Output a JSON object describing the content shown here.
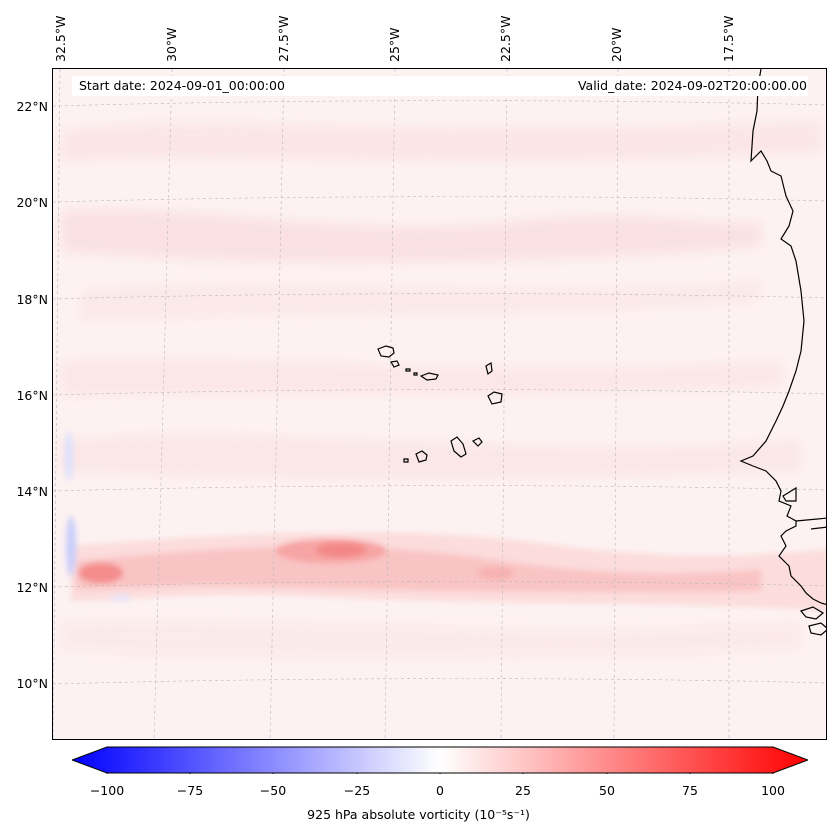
{
  "map": {
    "title_left": "Start date: 2024-09-01_00:00:00",
    "title_right": "Valid_date: 2024-09-02T20:00:00.00",
    "lon_labels": [
      "32.5°W",
      "30°W",
      "27.5°W",
      "25°W",
      "22.5°W",
      "20°W",
      "17.5°W"
    ],
    "lat_labels": [
      "22°N",
      "20°N",
      "18°N",
      "16°N",
      "14°N",
      "12°N",
      "10°N"
    ],
    "variable": "925 hPa absolute vorticity",
    "units": "(10⁻⁵s⁻¹)",
    "colorbar": {
      "ticks": [
        "−100",
        "−75",
        "−50",
        "−25",
        "0",
        "25",
        "50",
        "75",
        "100"
      ],
      "min": -100,
      "max": 100,
      "low_color": "#0000ff",
      "mid_color": "#ffffff",
      "high_color": "#ff0000"
    },
    "features": [
      "Cape Verde islands",
      "West African coastline (Senegal, Gambia, Guinea-Bissau)"
    ]
  }
}
